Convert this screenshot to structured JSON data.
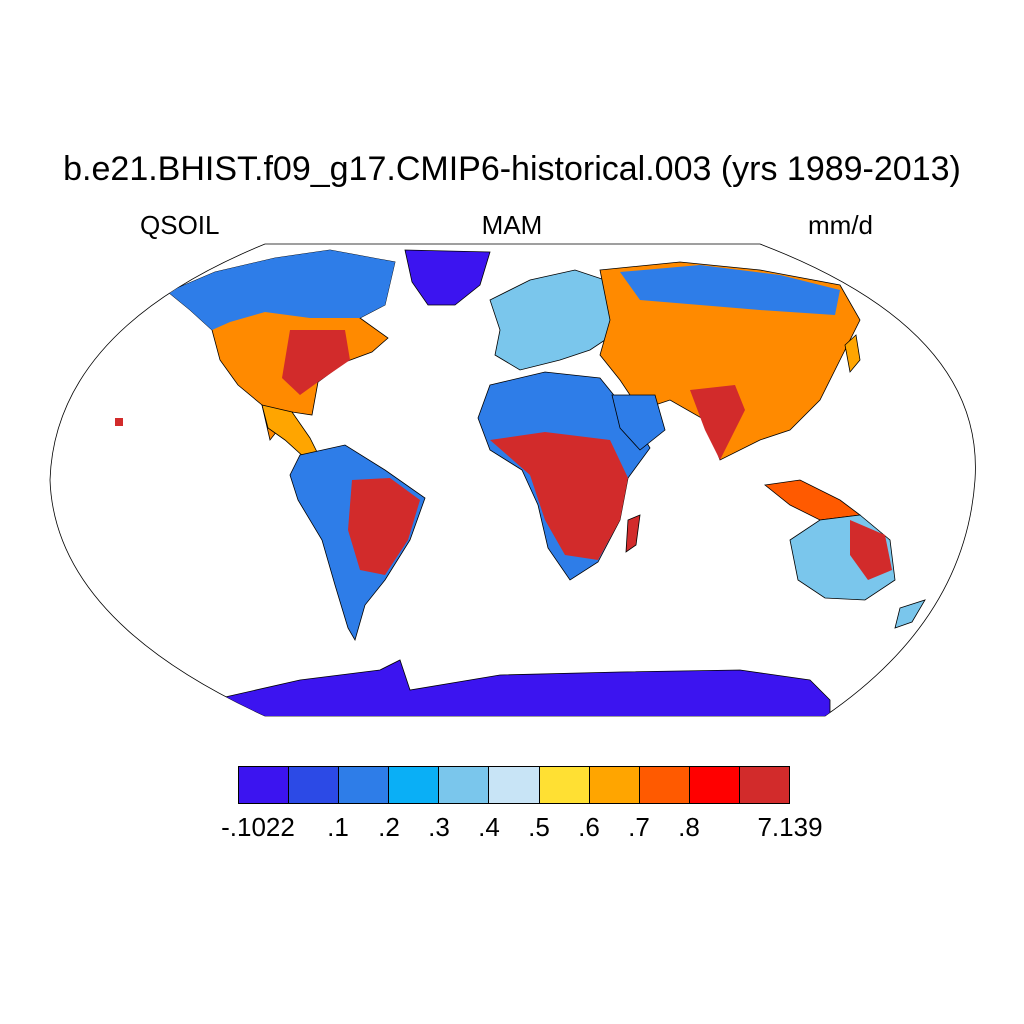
{
  "title": "b.e21.BHIST.f09_g17.CMIP6-historical.003 (yrs 1989-2013)",
  "variable": "QSOIL",
  "season": "MAM",
  "units": "mm/d",
  "colorbar": {
    "colors": [
      "#3c14f0",
      "#2c4ae6",
      "#2e7de8",
      "#0aaff6",
      "#7ac6ec",
      "#c8e4f6",
      "#ffe033",
      "#ffa500",
      "#ff5a00",
      "#ff0000",
      "#d22b2b"
    ],
    "labels": [
      "-.1022",
      ".1",
      ".2",
      ".3",
      ".4",
      ".5",
      ".6",
      ".7",
      ".8",
      "7.139"
    ]
  },
  "map": {
    "projection": "robinson",
    "land_color": "#c8e4f6"
  }
}
